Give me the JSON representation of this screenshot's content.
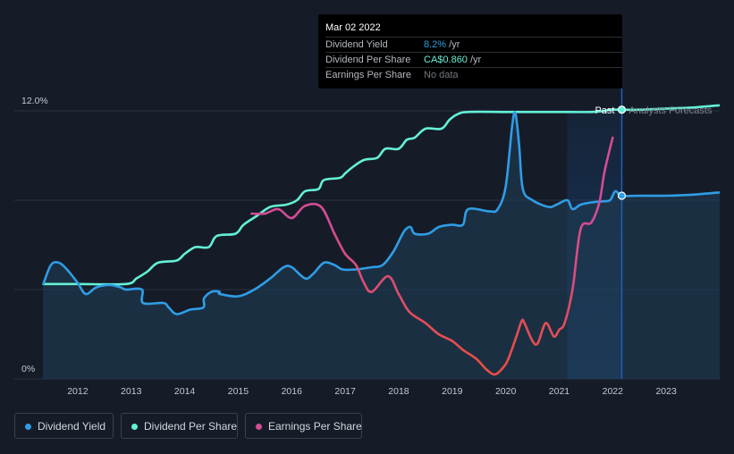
{
  "tooltip": {
    "date": "Mar 02 2022",
    "rows": [
      {
        "label": "Dividend Yield",
        "value": "8.2%",
        "unit": " /yr",
        "color": "#2f9de5"
      },
      {
        "label": "Dividend Per Share",
        "value": "CA$0.860",
        "unit": " /yr",
        "color": "#64f0d6"
      },
      {
        "label": "Earnings Per Share",
        "value": "No data",
        "unit": "",
        "color": "#72777f"
      }
    ]
  },
  "legend": [
    {
      "label": "Dividend Yield",
      "color": "#2f9de5"
    },
    {
      "label": "Dividend Per Share",
      "color": "#64f0d6"
    },
    {
      "label": "Earnings Per Share",
      "color": "#d44c94"
    }
  ],
  "chart_data": {
    "type": "line",
    "y_axis_labels": [
      "12.0%",
      "0%"
    ],
    "ylim": [
      0,
      12
    ],
    "xlim": [
      2011.35,
      2024.0
    ],
    "x_ticks": [
      2012,
      2013,
      2014,
      2015,
      2016,
      2017,
      2018,
      2019,
      2020,
      2021,
      2022,
      2023
    ],
    "x_tick_labels": [
      "2012",
      "2013",
      "2014",
      "2015",
      "2016",
      "2017",
      "2018",
      "2019",
      "2020",
      "2021",
      "2022",
      "2023"
    ],
    "past_label": "Past",
    "forecast_label": "Analysts Forecasts",
    "forecast_start": 2022.17,
    "highlight_start": 2021.15,
    "series": [
      {
        "name": "Dividend Yield",
        "color": "#2f9de5",
        "points": [
          [
            2011.35,
            4.2
          ],
          [
            2011.5,
            5.1
          ],
          [
            2011.65,
            5.2
          ],
          [
            2011.8,
            4.9
          ],
          [
            2012.0,
            4.3
          ],
          [
            2012.15,
            3.8
          ],
          [
            2012.35,
            4.1
          ],
          [
            2012.6,
            4.2
          ],
          [
            2012.8,
            4.1
          ],
          [
            2012.9,
            4.0
          ],
          [
            2013.2,
            4.0
          ],
          [
            2013.22,
            3.4
          ],
          [
            2013.6,
            3.4
          ],
          [
            2013.7,
            3.2
          ],
          [
            2013.85,
            2.9
          ],
          [
            2014.1,
            3.1
          ],
          [
            2014.35,
            3.2
          ],
          [
            2014.36,
            3.6
          ],
          [
            2014.5,
            3.9
          ],
          [
            2014.65,
            3.9
          ],
          [
            2014.66,
            3.8
          ],
          [
            2015.0,
            3.7
          ],
          [
            2015.3,
            4.0
          ],
          [
            2015.6,
            4.5
          ],
          [
            2015.85,
            5.0
          ],
          [
            2016.0,
            5.0
          ],
          [
            2016.25,
            4.5
          ],
          [
            2016.4,
            4.7
          ],
          [
            2016.6,
            5.2
          ],
          [
            2016.8,
            5.1
          ],
          [
            2016.95,
            4.9
          ],
          [
            2017.2,
            4.9
          ],
          [
            2017.5,
            5.0
          ],
          [
            2017.7,
            5.1
          ],
          [
            2017.9,
            5.7
          ],
          [
            2018.1,
            6.6
          ],
          [
            2018.22,
            6.8
          ],
          [
            2018.3,
            6.5
          ],
          [
            2018.55,
            6.5
          ],
          [
            2018.75,
            6.8
          ],
          [
            2019.0,
            6.9
          ],
          [
            2019.2,
            6.9
          ],
          [
            2019.3,
            7.6
          ],
          [
            2019.7,
            7.5
          ],
          [
            2019.85,
            7.6
          ],
          [
            2020.0,
            8.6
          ],
          [
            2020.12,
            11.3
          ],
          [
            2020.18,
            11.9
          ],
          [
            2020.25,
            10.5
          ],
          [
            2020.32,
            8.5
          ],
          [
            2020.5,
            8.0
          ],
          [
            2020.8,
            7.7
          ],
          [
            2020.95,
            7.8
          ],
          [
            2021.15,
            8.0
          ],
          [
            2021.25,
            7.6
          ],
          [
            2021.4,
            7.8
          ],
          [
            2021.6,
            7.9
          ],
          [
            2021.8,
            7.95
          ],
          [
            2021.95,
            8.0
          ],
          [
            2022.05,
            8.4
          ],
          [
            2022.17,
            8.2
          ],
          [
            2022.5,
            8.2
          ],
          [
            2023.0,
            8.2
          ],
          [
            2023.5,
            8.25
          ],
          [
            2024.0,
            8.35
          ]
        ]
      },
      {
        "name": "Dividend Per Share",
        "color": "#64f0d6",
        "points": [
          [
            2011.35,
            4.25
          ],
          [
            2012.0,
            4.25
          ],
          [
            2012.9,
            4.25
          ],
          [
            2013.1,
            4.5
          ],
          [
            2013.3,
            4.8
          ],
          [
            2013.5,
            5.2
          ],
          [
            2013.85,
            5.3
          ],
          [
            2014.0,
            5.6
          ],
          [
            2014.2,
            5.9
          ],
          [
            2014.45,
            5.9
          ],
          [
            2014.6,
            6.4
          ],
          [
            2014.95,
            6.5
          ],
          [
            2015.1,
            6.9
          ],
          [
            2015.35,
            7.3
          ],
          [
            2015.6,
            7.7
          ],
          [
            2015.9,
            7.8
          ],
          [
            2016.1,
            8.0
          ],
          [
            2016.25,
            8.4
          ],
          [
            2016.5,
            8.5
          ],
          [
            2016.6,
            8.9
          ],
          [
            2016.9,
            9.0
          ],
          [
            2017.0,
            9.2
          ],
          [
            2017.15,
            9.5
          ],
          [
            2017.35,
            9.8
          ],
          [
            2017.6,
            9.9
          ],
          [
            2017.75,
            10.3
          ],
          [
            2018.0,
            10.3
          ],
          [
            2018.15,
            10.7
          ],
          [
            2018.3,
            10.8
          ],
          [
            2018.5,
            11.2
          ],
          [
            2018.8,
            11.2
          ],
          [
            2018.95,
            11.6
          ],
          [
            2019.1,
            11.85
          ],
          [
            2019.3,
            11.95
          ],
          [
            2020.0,
            11.95
          ],
          [
            2020.5,
            11.95
          ],
          [
            2021.0,
            11.95
          ],
          [
            2021.6,
            11.95
          ],
          [
            2021.85,
            12.0
          ],
          [
            2021.95,
            12.05
          ],
          [
            2022.17,
            12.05
          ],
          [
            2022.5,
            12.05
          ],
          [
            2023.0,
            12.1
          ],
          [
            2023.5,
            12.15
          ],
          [
            2024.0,
            12.25
          ]
        ]
      },
      {
        "name": "Earnings Per Share",
        "color": "#d44c94",
        "points": [
          [
            2015.25,
            7.4
          ],
          [
            2015.5,
            7.4
          ],
          [
            2015.75,
            7.6
          ],
          [
            2016.0,
            7.2
          ],
          [
            2016.25,
            7.75
          ],
          [
            2016.55,
            7.7
          ],
          [
            2016.8,
            6.5
          ],
          [
            2017.0,
            5.6
          ],
          [
            2017.2,
            5.1
          ],
          [
            2017.35,
            4.3
          ],
          [
            2017.5,
            3.9
          ],
          [
            2017.8,
            4.6
          ],
          [
            2018.0,
            3.8
          ],
          [
            2018.2,
            3.0
          ],
          [
            2018.5,
            2.5
          ],
          [
            2018.75,
            2.0
          ],
          [
            2019.0,
            1.7
          ],
          [
            2019.2,
            1.3
          ],
          [
            2019.45,
            0.9
          ],
          [
            2019.65,
            0.4
          ],
          [
            2019.8,
            0.2
          ],
          [
            2019.95,
            0.5
          ],
          [
            2020.05,
            0.9
          ],
          [
            2020.2,
            1.9
          ],
          [
            2020.3,
            2.6
          ],
          [
            2020.35,
            2.5
          ],
          [
            2020.5,
            1.7
          ],
          [
            2020.6,
            1.6
          ],
          [
            2020.75,
            2.5
          ],
          [
            2020.9,
            1.9
          ],
          [
            2021.0,
            2.2
          ],
          [
            2021.1,
            2.5
          ],
          [
            2021.25,
            4.0
          ],
          [
            2021.4,
            6.7
          ],
          [
            2021.6,
            7.0
          ],
          [
            2021.75,
            7.9
          ],
          [
            2021.85,
            9.3
          ],
          [
            2022.0,
            10.8
          ]
        ]
      }
    ],
    "end_markers": [
      {
        "series": "Dividend Yield",
        "x": 2022.17,
        "y": 8.2
      },
      {
        "series": "Dividend Per Share",
        "x": 2022.17,
        "y": 12.05
      }
    ]
  }
}
